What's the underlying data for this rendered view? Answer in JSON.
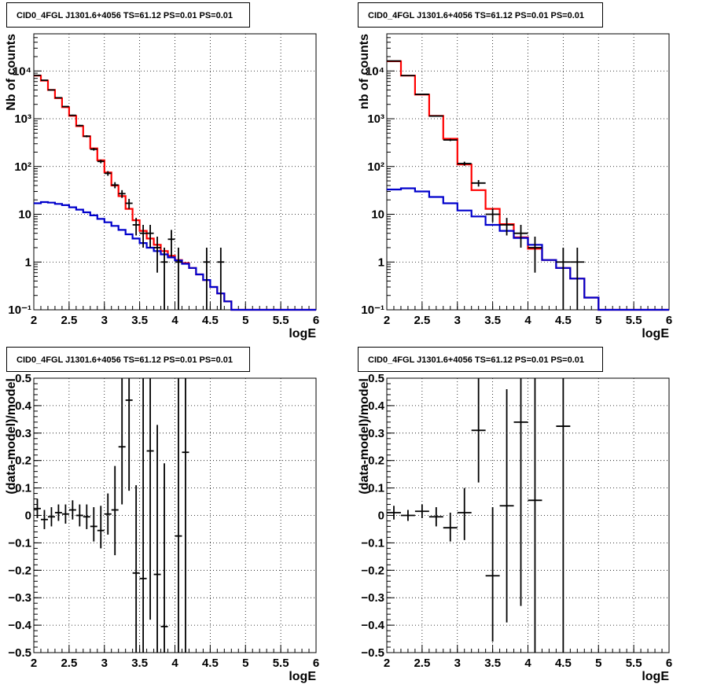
{
  "chart_data": [
    {
      "type": "line",
      "title": "CID0_4FGL J1301.6+4056 TS=61.12 PS=0.01 PS=0.01",
      "xlabel": "logE",
      "ylabel": "Nb of counts",
      "xlim": [
        2,
        6
      ],
      "ylim": [
        0.1,
        60000
      ],
      "yscale": "log",
      "grid": true,
      "x_ticks": [
        "2",
        "2.5",
        "3",
        "3.5",
        "4",
        "4.5",
        "5",
        "5.5",
        "6"
      ],
      "y_ticks": [
        {
          "value": 0.1,
          "label": "10⁻¹"
        },
        {
          "value": 1,
          "label": "1"
        },
        {
          "value": 10,
          "label": "10"
        },
        {
          "value": 100,
          "label": "10²"
        },
        {
          "value": 1000,
          "label": "10³"
        },
        {
          "value": 10000,
          "label": "10⁴"
        }
      ],
      "bin_edges": [
        2.0,
        2.1,
        2.2,
        2.3,
        2.4,
        2.5,
        2.6,
        2.7,
        2.8,
        2.9,
        3.0,
        3.1,
        3.2,
        3.3,
        3.4,
        3.5,
        3.6,
        3.7,
        3.8,
        3.9,
        4.0,
        4.1,
        4.2,
        4.3,
        4.4,
        4.5,
        4.6,
        4.7,
        4.8,
        4.9,
        5.0,
        5.1,
        5.2,
        5.3,
        5.4,
        5.5,
        5.6,
        5.7,
        5.8,
        5.9,
        6.0
      ],
      "series": [
        {
          "color": "#ff0000",
          "style": "step",
          "values": [
            8000,
            6300,
            4000,
            2700,
            1750,
            1150,
            700,
            430,
            240,
            135,
            75,
            40,
            24,
            13,
            7.5,
            4.5,
            3.1,
            2.3,
            1.7,
            1.35,
            1.1,
            0.95,
            0.75,
            0.55,
            0.42,
            0.3,
            0.22,
            0.15,
            0.1,
            0.1,
            0.1,
            0.1,
            0.1,
            0.1,
            0.1,
            0.1,
            0.1,
            0.1,
            0.1,
            0.1
          ]
        },
        {
          "color": "#0000cc",
          "style": "step",
          "values": [
            17,
            18,
            17.5,
            16.5,
            15.5,
            14,
            12.5,
            11,
            9.5,
            8,
            6.8,
            5.7,
            4.7,
            3.8,
            3.1,
            2.5,
            2.0,
            1.7,
            1.45,
            1.25,
            1.08,
            0.92,
            0.75,
            0.55,
            0.42,
            0.3,
            0.22,
            0.15,
            0.1,
            0.1,
            0.1,
            0.1,
            0.1,
            0.1,
            0.1,
            0.1,
            0.1,
            0.1,
            0.1,
            0.1
          ]
        }
      ],
      "points": [
        {
          "x": 2.05,
          "y": 8100,
          "ylo": 8010,
          "yhi": 8190
        },
        {
          "x": 2.15,
          "y": 6400,
          "ylo": 6320,
          "yhi": 6480
        },
        {
          "x": 2.25,
          "y": 4000,
          "ylo": 3935,
          "yhi": 4065
        },
        {
          "x": 2.35,
          "y": 2750,
          "ylo": 2700,
          "yhi": 2800
        },
        {
          "x": 2.45,
          "y": 1800,
          "ylo": 1760,
          "yhi": 1840
        },
        {
          "x": 2.55,
          "y": 1180,
          "ylo": 1145,
          "yhi": 1215
        },
        {
          "x": 2.65,
          "y": 720,
          "ylo": 693,
          "yhi": 747
        },
        {
          "x": 2.75,
          "y": 430,
          "ylo": 409,
          "yhi": 451
        },
        {
          "x": 2.85,
          "y": 230,
          "ylo": 215,
          "yhi": 245
        },
        {
          "x": 2.95,
          "y": 128,
          "ylo": 117,
          "yhi": 139
        },
        {
          "x": 3.05,
          "y": 72,
          "ylo": 64,
          "yhi": 80
        },
        {
          "x": 3.15,
          "y": 41,
          "ylo": 35,
          "yhi": 47
        },
        {
          "x": 3.25,
          "y": 27,
          "ylo": 22,
          "yhi": 32
        },
        {
          "x": 3.35,
          "y": 17,
          "ylo": 13,
          "yhi": 21
        },
        {
          "x": 3.45,
          "y": 6,
          "ylo": 3.6,
          "yhi": 8.4
        },
        {
          "x": 3.55,
          "y": 4,
          "ylo": 2,
          "yhi": 6
        },
        {
          "x": 3.65,
          "y": 4,
          "ylo": 2,
          "yhi": 6
        },
        {
          "x": 3.75,
          "y": 2,
          "ylo": 0.6,
          "yhi": 3.4
        },
        {
          "x": 3.85,
          "y": 1,
          "ylo": 0.1,
          "yhi": 2
        },
        {
          "x": 3.95,
          "y": 3,
          "ylo": 1.3,
          "yhi": 4.7
        },
        {
          "x": 4.05,
          "y": 1,
          "ylo": 0.1,
          "yhi": 2
        },
        {
          "x": 4.45,
          "y": 1,
          "ylo": 0.1,
          "yhi": 2
        },
        {
          "x": 4.65,
          "y": 1,
          "ylo": 0.1,
          "yhi": 2
        }
      ]
    },
    {
      "type": "line",
      "title": "CID0_4FGL J1301.6+4056 TS=61.12 PS=0.01 PS=0.01",
      "xlabel": "logE",
      "ylabel": "nb of counts",
      "xlim": [
        2,
        6
      ],
      "ylim": [
        0.1,
        60000
      ],
      "yscale": "log",
      "grid": true,
      "x_ticks": [
        "2",
        "2.5",
        "3",
        "3.5",
        "4",
        "4.5",
        "5",
        "5.5",
        "6"
      ],
      "y_ticks": [
        {
          "value": 0.1,
          "label": "10⁻¹"
        },
        {
          "value": 1,
          "label": "1"
        },
        {
          "value": 10,
          "label": "10"
        },
        {
          "value": 100,
          "label": "10²"
        },
        {
          "value": 1000,
          "label": "10³"
        },
        {
          "value": 10000,
          "label": "10⁴"
        }
      ],
      "bin_edges": [
        2.0,
        2.2,
        2.4,
        2.6,
        2.8,
        3.0,
        3.2,
        3.4,
        3.6,
        3.8,
        4.0,
        4.2,
        4.4,
        4.6,
        4.8,
        5.0,
        5.2,
        5.4,
        5.6,
        5.8,
        6.0
      ],
      "series": [
        {
          "color": "#ff0000",
          "style": "step",
          "values": [
            16000,
            8000,
            3200,
            1150,
            380,
            110,
            32,
            13,
            6.2,
            3.3,
            1.9,
            1.1,
            0.75,
            0.45,
            0.18,
            0.1,
            0.1,
            0.1,
            0.1,
            0.1
          ]
        },
        {
          "color": "#0000cc",
          "style": "step",
          "values": [
            33,
            35,
            30,
            23,
            17,
            12,
            9,
            6,
            4.5,
            3.2,
            2.3,
            1.1,
            0.75,
            0.45,
            0.18,
            0.1,
            0.1,
            0.1,
            0.1,
            0.1
          ]
        }
      ],
      "points": [
        {
          "x": 2.1,
          "y": 16200,
          "ylo": 16070,
          "yhi": 16330
        },
        {
          "x": 2.3,
          "y": 8000,
          "ylo": 7910,
          "yhi": 8090
        },
        {
          "x": 2.5,
          "y": 3250,
          "ylo": 3190,
          "yhi": 3310
        },
        {
          "x": 2.7,
          "y": 1140,
          "ylo": 1105,
          "yhi": 1175
        },
        {
          "x": 2.9,
          "y": 360,
          "ylo": 341,
          "yhi": 379
        },
        {
          "x": 3.1,
          "y": 115,
          "ylo": 104,
          "yhi": 126
        },
        {
          "x": 3.3,
          "y": 45,
          "ylo": 38,
          "yhi": 52
        },
        {
          "x": 3.5,
          "y": 10,
          "ylo": 6.8,
          "yhi": 13.2
        },
        {
          "x": 3.7,
          "y": 6,
          "ylo": 3.6,
          "yhi": 8.4
        },
        {
          "x": 3.9,
          "y": 4,
          "ylo": 2,
          "yhi": 6
        },
        {
          "x": 4.1,
          "y": 2,
          "ylo": 0.6,
          "yhi": 3.4
        },
        {
          "x": 4.5,
          "y": 1,
          "ylo": 0.1,
          "yhi": 2
        },
        {
          "x": 4.7,
          "y": 1,
          "ylo": 0.1,
          "yhi": 2
        }
      ]
    },
    {
      "type": "scatter",
      "title": "CID0_4FGL J1301.6+4056 TS=61.12 PS=0.01 PS=0.01",
      "xlabel": "logE",
      "ylabel": "(data-model)/model",
      "xlim": [
        2,
        6
      ],
      "ylim": [
        -0.5,
        0.5
      ],
      "yscale": "linear",
      "grid": true,
      "x_ticks": [
        "2",
        "2.5",
        "3",
        "3.5",
        "4",
        "4.5",
        "5",
        "5.5",
        "6"
      ],
      "y_ticks": [
        {
          "value": -0.5,
          "label": "−0.5"
        },
        {
          "value": -0.4,
          "label": "−0.4"
        },
        {
          "value": -0.3,
          "label": "−0.3"
        },
        {
          "value": -0.2,
          "label": "−0.2"
        },
        {
          "value": -0.1,
          "label": "−0.1"
        },
        {
          "value": 0,
          "label": "0"
        },
        {
          "value": 0.1,
          "label": "0.1"
        },
        {
          "value": 0.2,
          "label": "0.2"
        },
        {
          "value": 0.3,
          "label": "0.3"
        },
        {
          "value": 0.4,
          "label": "0.4"
        },
        {
          "value": 0.5,
          "label": "0.5"
        }
      ],
      "xerr": 0.05,
      "points": [
        {
          "x": 2.05,
          "y": 0.025,
          "ylo": -0.01,
          "yhi": 0.06
        },
        {
          "x": 2.15,
          "y": -0.015,
          "ylo": -0.05,
          "yhi": 0.02
        },
        {
          "x": 2.25,
          "y": -0.005,
          "ylo": -0.04,
          "yhi": 0.03
        },
        {
          "x": 2.35,
          "y": 0.01,
          "ylo": -0.02,
          "yhi": 0.04
        },
        {
          "x": 2.45,
          "y": 0.005,
          "ylo": -0.03,
          "yhi": 0.04
        },
        {
          "x": 2.55,
          "y": 0.02,
          "ylo": -0.015,
          "yhi": 0.055
        },
        {
          "x": 2.65,
          "y": 0.0,
          "ylo": -0.04,
          "yhi": 0.04
        },
        {
          "x": 2.75,
          "y": -0.005,
          "ylo": -0.05,
          "yhi": 0.04
        },
        {
          "x": 2.85,
          "y": -0.04,
          "ylo": -0.095,
          "yhi": 0.03
        },
        {
          "x": 2.95,
          "y": -0.055,
          "ylo": -0.12,
          "yhi": 0.035
        },
        {
          "x": 3.05,
          "y": 0.005,
          "ylo": -0.07,
          "yhi": 0.08
        },
        {
          "x": 3.15,
          "y": 0.02,
          "ylo": -0.145,
          "yhi": 0.18
        },
        {
          "x": 3.25,
          "y": 0.25,
          "ylo": 0.04,
          "yhi": 0.5
        },
        {
          "x": 3.35,
          "y": 0.42,
          "ylo": 0.09,
          "yhi": 0.5
        },
        {
          "x": 3.45,
          "y": -0.21,
          "ylo": -0.5,
          "yhi": 0.11
        },
        {
          "x": 3.55,
          "y": -0.23,
          "ylo": -0.5,
          "yhi": 0.5
        },
        {
          "x": 3.65,
          "y": 0.235,
          "ylo": -0.38,
          "yhi": 0.5
        },
        {
          "x": 3.75,
          "y": -0.215,
          "ylo": -0.5,
          "yhi": 0.33
        },
        {
          "x": 3.85,
          "y": -0.405,
          "ylo": -0.5,
          "yhi": 0.19
        },
        {
          "x": 4.05,
          "y": -0.075,
          "ylo": -0.5,
          "yhi": 0.5
        },
        {
          "x": 4.15,
          "y": 0.23,
          "ylo": -0.5,
          "yhi": 0.5
        }
      ]
    },
    {
      "type": "scatter",
      "title": "CID0_4FGL J1301.6+4056 TS=61.12 PS=0.01 PS=0.01",
      "xlabel": "logE",
      "ylabel": "(data-model)/model",
      "xlim": [
        2,
        6
      ],
      "ylim": [
        -0.5,
        0.5
      ],
      "yscale": "linear",
      "grid": true,
      "x_ticks": [
        "2",
        "2.5",
        "3",
        "3.5",
        "4",
        "4.5",
        "5",
        "5.5",
        "6"
      ],
      "y_ticks": [
        {
          "value": -0.5,
          "label": "−0.5"
        },
        {
          "value": -0.4,
          "label": "−0.4"
        },
        {
          "value": -0.3,
          "label": "−0.3"
        },
        {
          "value": -0.2,
          "label": "−0.2"
        },
        {
          "value": -0.1,
          "label": "−0.1"
        },
        {
          "value": 0,
          "label": "0"
        },
        {
          "value": 0.1,
          "label": "0.1"
        },
        {
          "value": 0.2,
          "label": "0.2"
        },
        {
          "value": 0.3,
          "label": "0.3"
        },
        {
          "value": 0.4,
          "label": "0.4"
        },
        {
          "value": 0.5,
          "label": "0.5"
        }
      ],
      "xerr": 0.1,
      "points": [
        {
          "x": 2.1,
          "y": 0.01,
          "ylo": -0.015,
          "yhi": 0.035
        },
        {
          "x": 2.3,
          "y": 0.0,
          "ylo": -0.02,
          "yhi": 0.02
        },
        {
          "x": 2.5,
          "y": 0.015,
          "ylo": -0.01,
          "yhi": 0.04
        },
        {
          "x": 2.7,
          "y": -0.005,
          "ylo": -0.04,
          "yhi": 0.03
        },
        {
          "x": 2.9,
          "y": -0.045,
          "ylo": -0.095,
          "yhi": 0.01
        },
        {
          "x": 3.1,
          "y": 0.01,
          "ylo": -0.09,
          "yhi": 0.1
        },
        {
          "x": 3.3,
          "y": 0.31,
          "ylo": 0.12,
          "yhi": 0.5
        },
        {
          "x": 3.5,
          "y": -0.22,
          "ylo": -0.46,
          "yhi": 0.03
        },
        {
          "x": 3.7,
          "y": 0.035,
          "ylo": -0.39,
          "yhi": 0.46
        },
        {
          "x": 3.9,
          "y": 0.34,
          "ylo": -0.33,
          "yhi": 0.5
        },
        {
          "x": 4.1,
          "y": 0.055,
          "ylo": -0.5,
          "yhi": 0.5
        },
        {
          "x": 4.5,
          "y": 0.325,
          "ylo": -0.5,
          "yhi": 0.5
        }
      ]
    }
  ]
}
